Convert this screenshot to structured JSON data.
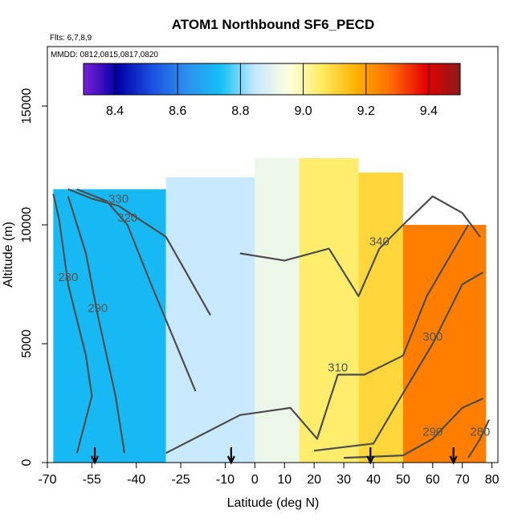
{
  "chart_data": {
    "type": "heatmap",
    "title": "ATOM1 Northbound SF6_PECD",
    "subtitle_lines": [
      "Flts: 6,7,8,9",
      "MMDD: 0812,0815,0817,0820"
    ],
    "xlabel": "Latitude (deg N)",
    "ylabel": "Altitude (m)",
    "xlim": [
      -70,
      82
    ],
    "ylim": [
      0,
      17500
    ],
    "x_ticks": [
      -70,
      -55,
      -40,
      -25,
      -10,
      0,
      10,
      20,
      30,
      40,
      50,
      60,
      70,
      80
    ],
    "x_tick_labels": [
      "-70",
      "-55",
      "-40",
      "-25",
      "-10",
      "0",
      "10",
      "20",
      "30",
      "40",
      "50",
      "60",
      "70",
      "80"
    ],
    "y_ticks": [
      0,
      5000,
      10000,
      15000
    ],
    "y_tick_labels": [
      "0",
      "5000",
      "10000",
      "15000"
    ],
    "colorbar": {
      "range": [
        8.3,
        9.5
      ],
      "ticks": [
        8.4,
        8.6,
        8.8,
        9.0,
        9.2,
        9.4
      ],
      "tick_labels": [
        "8.4",
        "8.6",
        "8.8",
        "9.0",
        "9.2",
        "9.4"
      ],
      "colors": [
        "#7a1fd6",
        "#0000a8",
        "#1a4fe0",
        "#2e8ff0",
        "#12c0f5",
        "#c7e8ff",
        "#ffffe0",
        "#ffeb5a",
        "#ffb000",
        "#ff6a00",
        "#e60000",
        "#8b1a1a"
      ]
    },
    "profile_latitudes": [
      -54,
      -8,
      39,
      67
    ],
    "heatmap_regions": [
      {
        "lat": [
          -68,
          -30
        ],
        "alt": [
          0,
          11500
        ],
        "value": 8.72
      },
      {
        "lat": [
          -30,
          0
        ],
        "alt": [
          0,
          12000
        ],
        "value": 8.85
      },
      {
        "lat": [
          0,
          15
        ],
        "alt": [
          0,
          12800
        ],
        "value": 8.92
      },
      {
        "lat": [
          15,
          35
        ],
        "alt": [
          0,
          12800
        ],
        "value": 9.05
      },
      {
        "lat": [
          35,
          50
        ],
        "alt": [
          0,
          12200
        ],
        "value": 9.1
      },
      {
        "lat": [
          50,
          78
        ],
        "alt": [
          0,
          10000
        ],
        "value": 9.25
      }
    ],
    "contours": [
      {
        "label": "280",
        "points": [
          [
            -60,
            400
          ],
          [
            -55,
            2800
          ],
          [
            -57,
            4500
          ],
          [
            -63,
            7500
          ],
          [
            -66,
            10200
          ],
          [
            -68,
            11300
          ]
        ]
      },
      {
        "label": "290",
        "points": [
          [
            -44,
            400
          ],
          [
            -47,
            2800
          ],
          [
            -53,
            6200
          ],
          [
            -57,
            8800
          ],
          [
            -63,
            11200
          ]
        ]
      },
      {
        "label": "320",
        "points": [
          [
            -20,
            3000
          ],
          [
            -35,
            7500
          ],
          [
            -43,
            10000
          ],
          [
            -50,
            11000
          ],
          [
            -60,
            11500
          ]
        ]
      },
      {
        "label": "330",
        "points": [
          [
            -15,
            6200
          ],
          [
            -30,
            9500
          ],
          [
            -46,
            10800
          ],
          [
            -55,
            11100
          ],
          [
            -63,
            11500
          ]
        ]
      },
      {
        "label": "310",
        "points": [
          [
            -30,
            400
          ],
          [
            -5,
            2000
          ],
          [
            12,
            2300
          ],
          [
            21,
            1000
          ],
          [
            28,
            3700
          ],
          [
            37,
            3700
          ],
          [
            50,
            4500
          ],
          [
            58,
            7000
          ],
          [
            72,
            10000
          ]
        ]
      },
      {
        "label": "300",
        "points": [
          [
            20,
            500
          ],
          [
            40,
            800
          ],
          [
            48,
            2500
          ],
          [
            60,
            5000
          ],
          [
            70,
            7500
          ],
          [
            77,
            8000
          ]
        ]
      },
      {
        "label": "290",
        "points": [
          [
            30,
            200
          ],
          [
            50,
            300
          ],
          [
            60,
            1000
          ],
          [
            70,
            2300
          ],
          [
            77,
            2700
          ]
        ]
      },
      {
        "label": "280",
        "points": [
          [
            72,
            200
          ],
          [
            76,
            1000
          ],
          [
            79,
            1800
          ]
        ]
      },
      {
        "label": "340",
        "points": [
          [
            -5,
            8800
          ],
          [
            10,
            8500
          ],
          [
            25,
            9000
          ],
          [
            35,
            7000
          ],
          [
            42,
            9000
          ],
          [
            50,
            10000
          ],
          [
            60,
            11200
          ],
          [
            70,
            10500
          ],
          [
            76,
            9500
          ]
        ]
      }
    ]
  }
}
